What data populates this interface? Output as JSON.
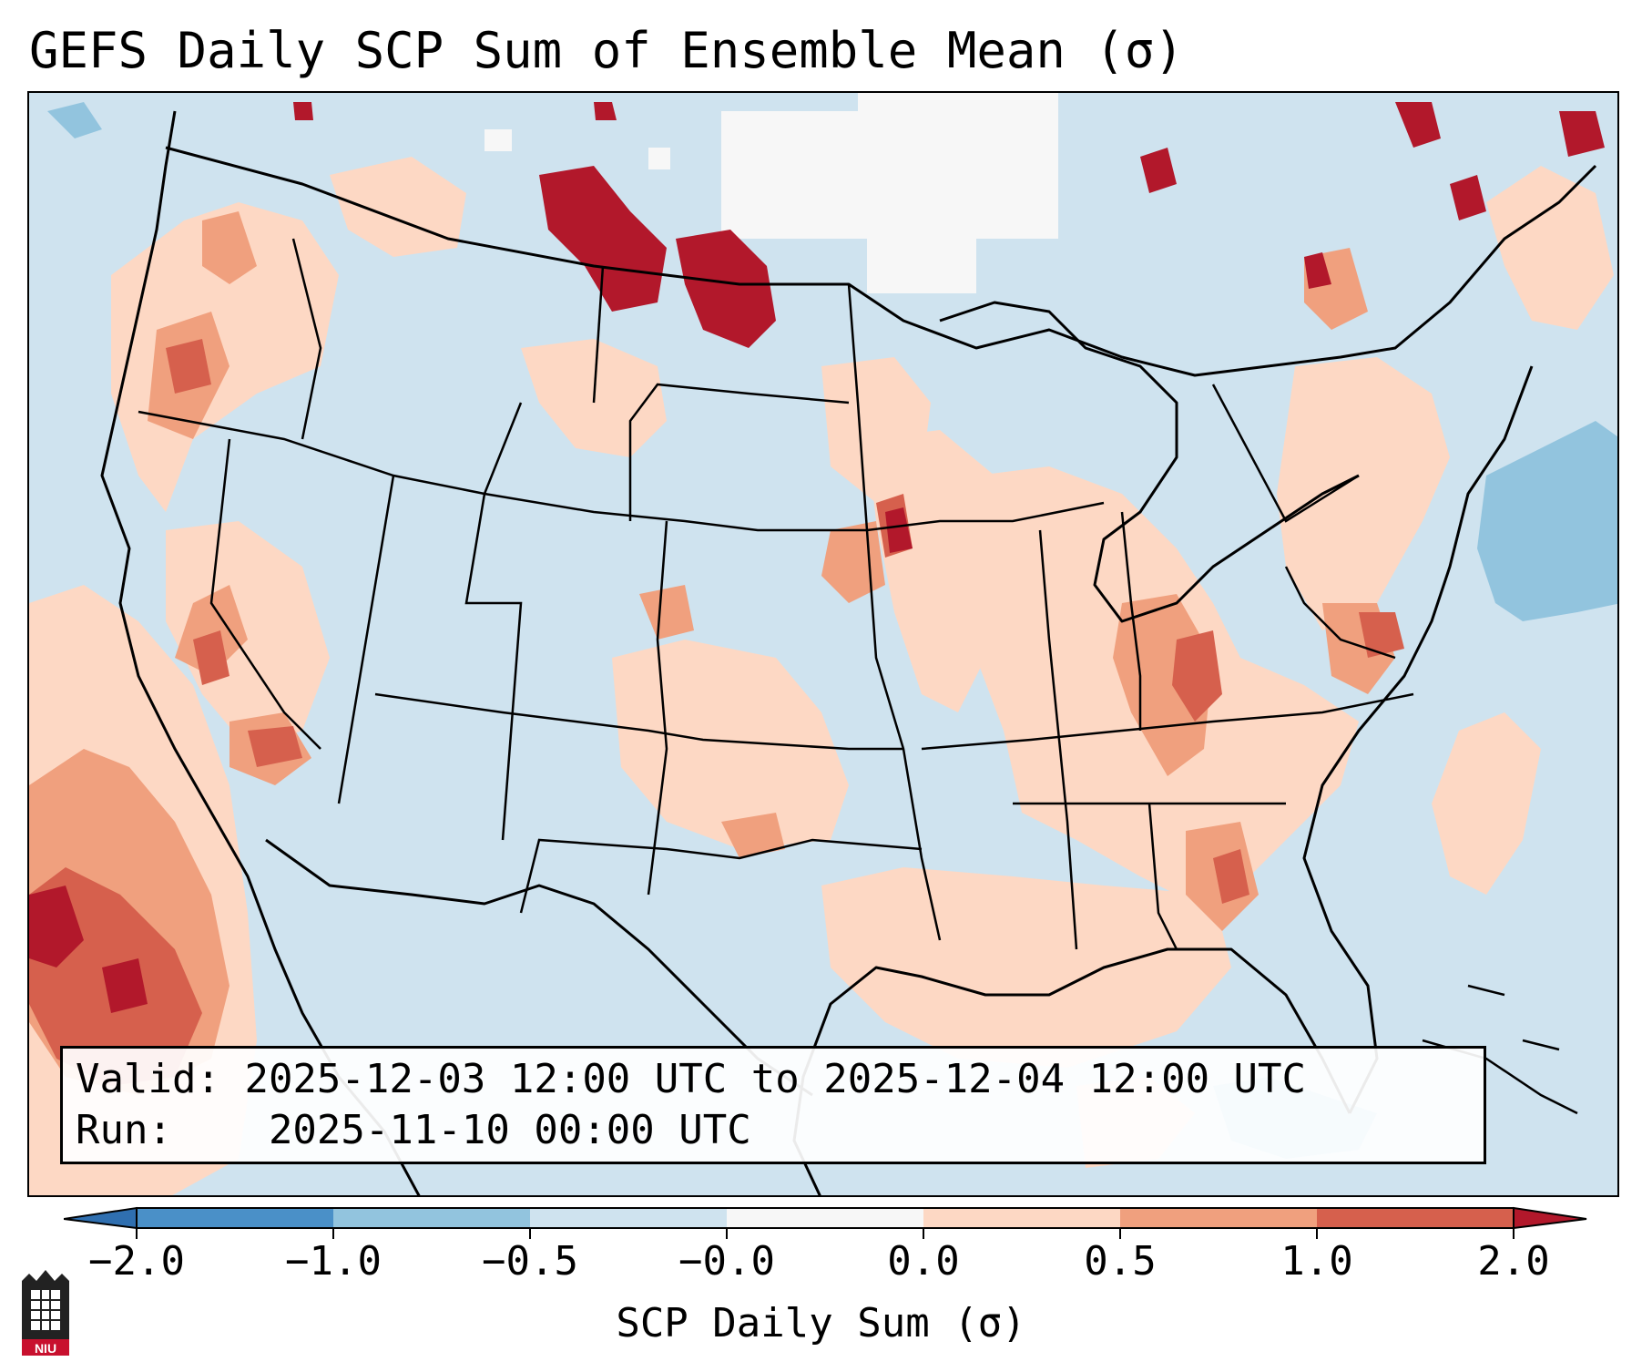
{
  "title": "GEFS Daily SCP Sum of Ensemble Mean (σ)",
  "info": {
    "valid_label": "Valid:",
    "valid_value": "2025-12-03 12:00 UTC to 2025-12-04 12:00 UTC",
    "run_label": "Run:",
    "run_value": "2025-11-10 00:00 UTC"
  },
  "colorbar": {
    "label": "SCP Daily Sum (σ)",
    "ticks": [
      "−2.0",
      "−1.0",
      "−0.5",
      "−0.0",
      "0.0",
      "0.5",
      "1.0",
      "2.0"
    ],
    "colors": {
      "below_min": "#2f6fb0",
      "n2_n1": "#4a90c8",
      "n1_n05": "#92c4de",
      "n05_0": "#cfe3ef",
      "zero": "#f7f7f7",
      "p0_p05": "#fdd8c4",
      "p05_p1": "#f0a07e",
      "p1_p2": "#d6604d",
      "above_max": "#b2182b"
    }
  },
  "logo": {
    "text": "NIU",
    "icon": "niu-tower-logo-icon"
  }
}
